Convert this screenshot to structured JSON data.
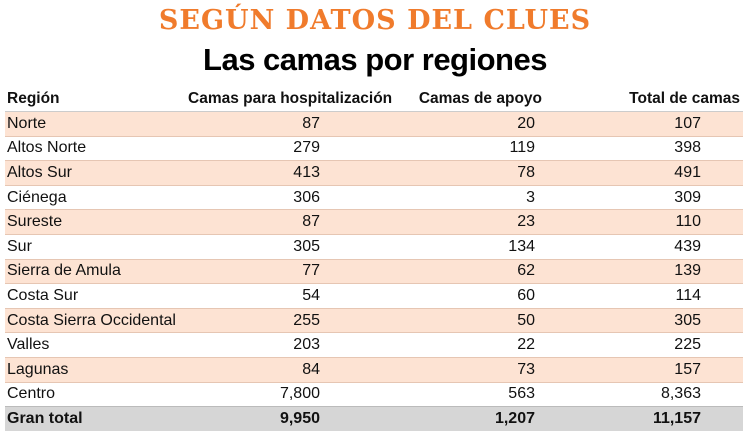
{
  "colors": {
    "accent": "#f07b2c",
    "row_shade": "#fde3d3",
    "total_row": "#d6d6d6"
  },
  "kicker": "SEGÚN DATOS DEL CLUES",
  "title": "Las camas por regiones",
  "chart_data": {
    "type": "table",
    "title": "Las camas por regiones",
    "subtitle": "SEGÚN DATOS DEL CLUES",
    "columns": [
      "Región",
      "Camas para hospitalización",
      "Camas de apoyo",
      "Total de camas"
    ],
    "rows": [
      {
        "region": "Norte",
        "hosp": "87",
        "apoyo": "20",
        "total": "107"
      },
      {
        "region": "Altos Norte",
        "hosp": "279",
        "apoyo": "119",
        "total": "398"
      },
      {
        "region": "Altos Sur",
        "hosp": "413",
        "apoyo": "78",
        "total": "491"
      },
      {
        "region": "Ciénega",
        "hosp": "306",
        "apoyo": "3",
        "total": "309"
      },
      {
        "region": "Sureste",
        "hosp": "87",
        "apoyo": "23",
        "total": "110"
      },
      {
        "region": "Sur",
        "hosp": "305",
        "apoyo": "134",
        "total": "439"
      },
      {
        "region": "Sierra de Amula",
        "hosp": "77",
        "apoyo": "62",
        "total": "139"
      },
      {
        "region": "Costa Sur",
        "hosp": "54",
        "apoyo": "60",
        "total": "114"
      },
      {
        "region": "Costa Sierra Occidental",
        "hosp": "255",
        "apoyo": "50",
        "total": "305"
      },
      {
        "region": "Valles",
        "hosp": "203",
        "apoyo": "22",
        "total": "225"
      },
      {
        "region": "Lagunas",
        "hosp": "84",
        "apoyo": "73",
        "total": "157"
      },
      {
        "region": "Centro",
        "hosp": "7,800",
        "apoyo": "563",
        "total": "8,363"
      }
    ],
    "total": {
      "region": "Gran total",
      "hosp": "9,950",
      "apoyo": "1,207",
      "total": "11,157"
    }
  }
}
